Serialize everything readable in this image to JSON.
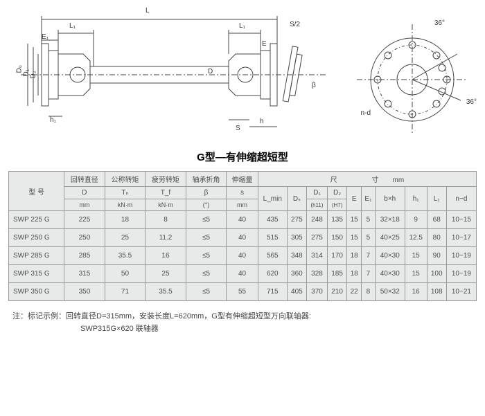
{
  "diagram": {
    "labels": {
      "L": "L",
      "L1_left": "L₁",
      "L1_right": "L₁",
      "E1": "E₁",
      "E": "E",
      "S2": "S/2",
      "D0": "D₀",
      "D1": "D₁",
      "D2": "D₂",
      "D": "D",
      "h1": "h₁",
      "h": "h",
      "S": "S",
      "beta": "β",
      "nd": "n-d",
      "ang36a": "36°",
      "ang36b": "36°"
    }
  },
  "title": "G型—有伸缩超短型",
  "table": {
    "header": {
      "model": "型 号",
      "rot_dia": "回转直径",
      "rot_dia_sym": "D",
      "rot_dia_unit": "mm",
      "nom_torque": "公称转矩",
      "nom_torque_sym": "Tₙ",
      "nom_torque_unit": "kN·m",
      "fat_torque": "疲劳转矩",
      "fat_torque_sym": "T_f",
      "fat_torque_unit": "kN·m",
      "bend_angle": "轴承折角",
      "bend_angle_sym": "β",
      "bend_angle_unit": "(°)",
      "ext": "伸缩量",
      "ext_sym": "s",
      "ext_unit": "mm",
      "dim_span": "尺　　　　　寸　　mm",
      "Lmin": "L_min",
      "Ds": "Dₛ",
      "D1": "D₁",
      "D1_sub": "(h11)",
      "D2": "D₂",
      "D2_sub": "(H7)",
      "E": "E",
      "E1": "E₁",
      "bxh": "b×h",
      "h1": "h₁",
      "L1": "L₁",
      "nd": "n−d"
    },
    "rows": [
      {
        "model": "SWP 225 G",
        "D": "225",
        "Tn": "18",
        "Tf": "8",
        "beta": "≤5",
        "s": "40",
        "Lmin": "435",
        "Ds": "275",
        "D1": "248",
        "D2": "135",
        "E": "15",
        "E1": "5",
        "bxh": "32×18",
        "h1": "9",
        "L1": "68",
        "nd": "10−15"
      },
      {
        "model": "SWP 250 G",
        "D": "250",
        "Tn": "25",
        "Tf": "11.2",
        "beta": "≤5",
        "s": "40",
        "Lmin": "515",
        "Ds": "305",
        "D1": "275",
        "D2": "150",
        "E": "15",
        "E1": "5",
        "bxh": "40×25",
        "h1": "12.5",
        "L1": "80",
        "nd": "10−17"
      },
      {
        "model": "SWP 285 G",
        "D": "285",
        "Tn": "35.5",
        "Tf": "16",
        "beta": "≤5",
        "s": "40",
        "Lmin": "565",
        "Ds": "348",
        "D1": "314",
        "D2": "170",
        "E": "18",
        "E1": "7",
        "bxh": "40×30",
        "h1": "15",
        "L1": "90",
        "nd": "10−19"
      },
      {
        "model": "SWP 315 G",
        "D": "315",
        "Tn": "50",
        "Tf": "25",
        "beta": "≤5",
        "s": "40",
        "Lmin": "620",
        "Ds": "360",
        "D1": "328",
        "D2": "185",
        "E": "18",
        "E1": "7",
        "bxh": "40×30",
        "h1": "15",
        "L1": "100",
        "nd": "10−19"
      },
      {
        "model": "SWP 350 G",
        "D": "350",
        "Tn": "71",
        "Tf": "35.5",
        "beta": "≤5",
        "s": "55",
        "Lmin": "715",
        "Ds": "405",
        "D1": "370",
        "D2": "210",
        "E": "22",
        "E1": "8",
        "bxh": "50×32",
        "h1": "16",
        "L1": "108",
        "nd": "10−21"
      }
    ]
  },
  "footnote": {
    "line1": "注：标记示例：回转直径D=315mm，安装长度L=620mm，G型有伸缩超短型万向联轴器:",
    "line2": "SWP315G×620 联轴器"
  },
  "colors": {
    "table_bg": "#e8eaea",
    "border": "#999999",
    "text": "#4b4b4b"
  }
}
